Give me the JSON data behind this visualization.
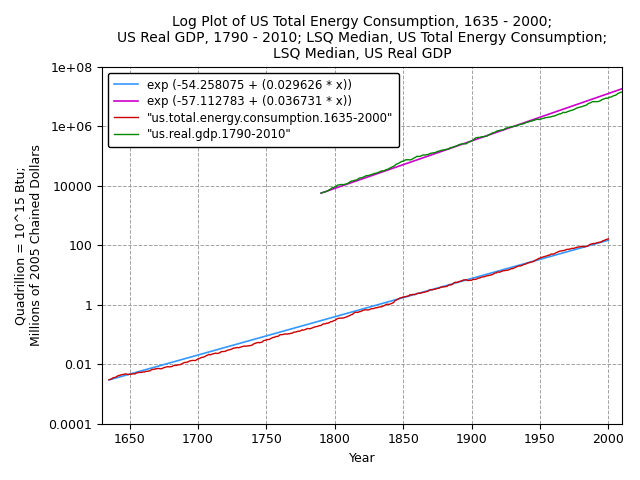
{
  "title": "Log Plot of US Total Energy Consumption, 1635 - 2000;\nUS Real GDP, 1790 - 2010; LSQ Median, US Total Energy Consumption;\nLSQ Median, US Real GDP",
  "xlabel": "Year",
  "ylabel": "Quadrillion = 10^15 Btu;\nMillions of 2005 Chained Dollars",
  "xlim": [
    1630,
    2010
  ],
  "energy_color": "#cc0000",
  "gdp_color": "#008800",
  "lsq_energy_color": "#3399ff",
  "lsq_gdp_color": "#cc00cc",
  "energy_label": "\"us.total.energy.consumption.1635-2000\"",
  "gdp_label": "\"us.real.gdp.1790-2010\"",
  "lsq_energy_label": "exp (-54.258075 + (0.029626 * x))",
  "lsq_gdp_label": "exp (-57.112783 + (0.036731 * x))",
  "lsq_energy_a": -54.258075,
  "lsq_energy_b": 0.029626,
  "lsq_gdp_a": -57.112783,
  "lsq_gdp_b": 0.036731,
  "energy_x_start": 1635,
  "energy_x_end": 2000,
  "gdp_x_start": 1790,
  "gdp_x_end": 2010,
  "background_color": "#ffffff",
  "grid_color": "#999999",
  "title_fontsize": 10,
  "label_fontsize": 9,
  "legend_fontsize": 8.5,
  "tick_fontsize": 9,
  "yticks": [
    0.0001,
    0.01,
    1,
    100,
    10000,
    1000000,
    100000000
  ],
  "ytick_labels": [
    "0.0001",
    "0.01",
    "1",
    "100",
    "10000",
    "1e+06",
    "1e+08"
  ],
  "xticks": [
    1650,
    1700,
    1750,
    1800,
    1850,
    1900,
    1950,
    2000
  ]
}
